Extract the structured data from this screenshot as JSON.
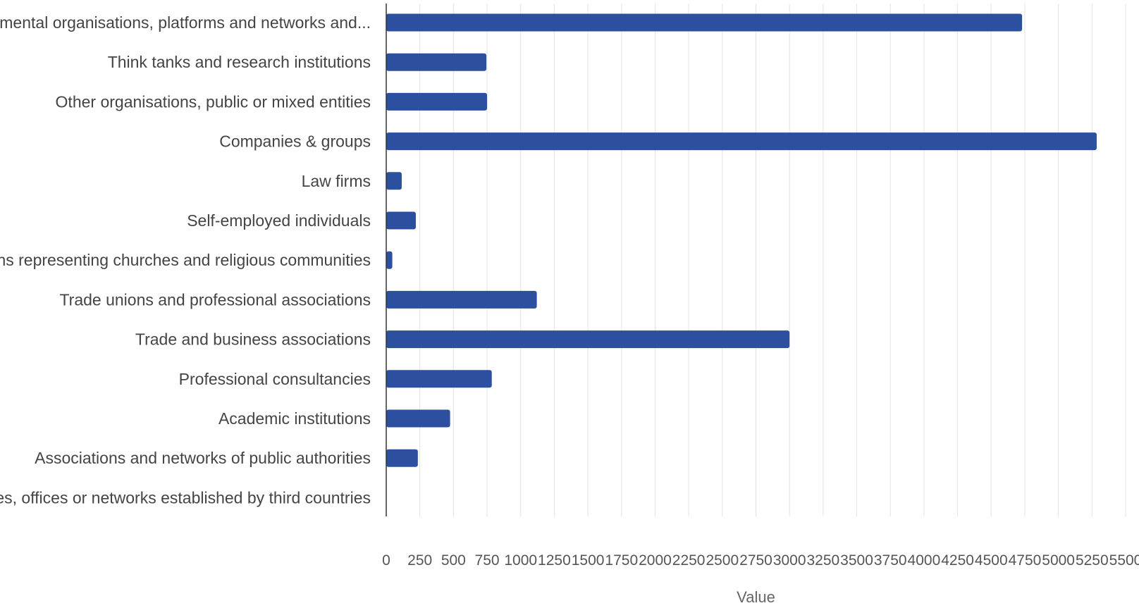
{
  "chart_data": {
    "type": "bar",
    "orientation": "horizontal",
    "title": "",
    "xlabel": "Value",
    "ylabel": "",
    "xlim": [
      0,
      5500
    ],
    "xticks": [
      0,
      250,
      500,
      750,
      1000,
      1250,
      1500,
      1750,
      2000,
      2250,
      2500,
      2750,
      3000,
      3250,
      3500,
      3750,
      4000,
      4250,
      4500,
      4750,
      5000,
      5250,
      5500
    ],
    "grid": "vertical",
    "legend": "none",
    "bar_color": "#2d4fa0",
    "categories": [
      "Non-governmental organisations, platforms and networks and...",
      "Think tanks and research institutions",
      "Other organisations, public or mixed entities",
      "Companies & groups",
      "Law firms",
      "Self-employed individuals",
      "Organisations representing churches and religious communities",
      "Trade unions and professional associations",
      "Trade and business associations",
      "Professional consultancies",
      "Academic institutions",
      "Associations and networks of public authorities",
      "Entities, offices or networks established by third countries"
    ],
    "values": [
      4730,
      745,
      750,
      5285,
      115,
      220,
      45,
      1120,
      3000,
      785,
      475,
      235,
      0
    ]
  }
}
